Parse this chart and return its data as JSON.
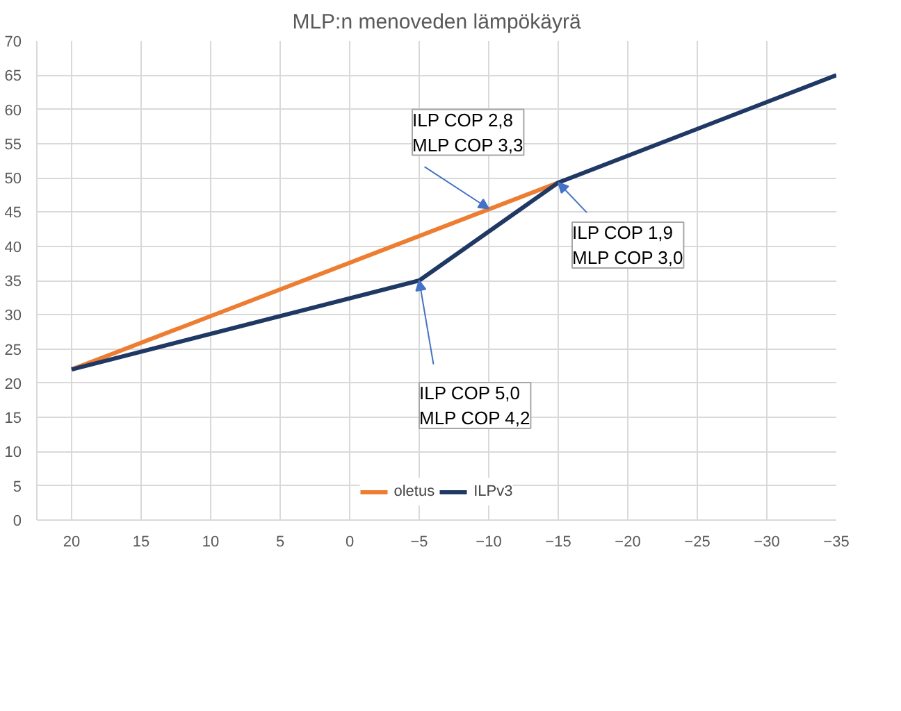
{
  "chart_data": {
    "type": "line",
    "title": "MLP:n menoveden lämpökäyrä",
    "series": [
      {
        "name": "oletus",
        "color": "#ed7d31",
        "x": [
          20,
          -15
        ],
        "values": [
          22,
          49.3
        ]
      },
      {
        "name": "ILPv3",
        "color": "#203864",
        "x": [
          20,
          -5,
          -15,
          -35
        ],
        "values": [
          22,
          35,
          49.3,
          65
        ]
      }
    ],
    "xlim": [
      22.5,
      -35
    ],
    "xticks": [
      20,
      15,
      10,
      5,
      0,
      -5,
      -10,
      -15,
      -20,
      -25,
      -30,
      -35
    ],
    "ylim": [
      0,
      70
    ],
    "yticks": [
      0,
      5,
      10,
      15,
      20,
      25,
      30,
      35,
      40,
      45,
      50,
      55,
      60,
      65,
      70
    ],
    "grid": true,
    "legend": "bottom",
    "marker": "none",
    "line_style": "solid",
    "annotations": [
      {
        "text": "ILP COP 2,8\nMLP COP 3,3",
        "x": -10,
        "y": 45.5
      },
      {
        "text": "ILP COP 1,9\nMLP COP 3,0",
        "x": -15,
        "y": 49.3
      },
      {
        "text": "ILP COP 5,0\nMLP COP 4,2",
        "x": -5,
        "y": 35
      }
    ]
  }
}
